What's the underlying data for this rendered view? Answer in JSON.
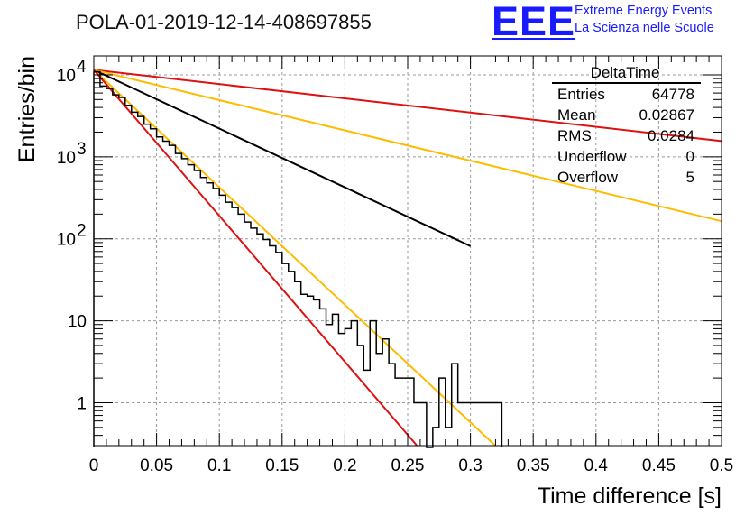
{
  "header": {
    "title": "POLA-01-2019-12-14-408697855",
    "logo_text": "EEE",
    "logo_line1": "Extreme Energy Events",
    "logo_line2": "La Scienza nelle Scuole"
  },
  "stats": {
    "name": "DeltaTime",
    "rows": [
      {
        "label": "Entries",
        "value": "64778"
      },
      {
        "label": "Mean",
        "value": "0.02867"
      },
      {
        "label": "RMS",
        "value": "0.0284"
      },
      {
        "label": "Underflow",
        "value": "0"
      },
      {
        "label": "Overflow",
        "value": "5"
      }
    ]
  },
  "chart_data": {
    "type": "line",
    "xlabel": "Time difference [s]",
    "ylabel": "Entries/bin",
    "xlim": [
      0,
      0.5
    ],
    "ylim": [
      0.3,
      17000
    ],
    "ylog": true,
    "grid": true,
    "legend": "top-right",
    "x_ticks": [
      "0",
      "0.05",
      "0.1",
      "0.15",
      "0.2",
      "0.25",
      "0.3",
      "0.35",
      "0.4",
      "0.45",
      "0.5"
    ],
    "y_ticks": [
      {
        "value": 1,
        "label": "1"
      },
      {
        "value": 10,
        "label": "10"
      },
      {
        "value": 100,
        "label": "10",
        "exp": "2"
      },
      {
        "value": 1000,
        "label": "10",
        "exp": "3"
      },
      {
        "value": 10000,
        "label": "10",
        "exp": "4"
      }
    ],
    "histogram": {
      "color": "#000000",
      "bin_width": 0.005,
      "counts": [
        10900,
        7300,
        6800,
        5700,
        5300,
        4250,
        3500,
        3100,
        2500,
        2200,
        1750,
        1550,
        1380,
        1100,
        950,
        800,
        680,
        560,
        480,
        410,
        340,
        280,
        240,
        200,
        160,
        135,
        115,
        98,
        82,
        68,
        50,
        40,
        30,
        21,
        20,
        18,
        14,
        9,
        12,
        7,
        8,
        10,
        5,
        2.5,
        10,
        4,
        6,
        3,
        2,
        2,
        2,
        1,
        1,
        0,
        0.5,
        2,
        0.5,
        3,
        1,
        1,
        1,
        1,
        1,
        1,
        1
      ]
    },
    "series": [
      {
        "color": "#000000",
        "y0": 11500,
        "slope": -16.5,
        "x_end": 0.3
      },
      {
        "color": "#dd1111",
        "y0": 11500,
        "slope": 4.0
      },
      {
        "color": "#ffbb00",
        "y0": 11500,
        "slope": 8.5
      },
      {
        "color": "#ffbb00",
        "y0": 11500,
        "slope": 33.0
      },
      {
        "color": "#dd1111",
        "y0": 11500,
        "slope": 41.0
      }
    ]
  }
}
